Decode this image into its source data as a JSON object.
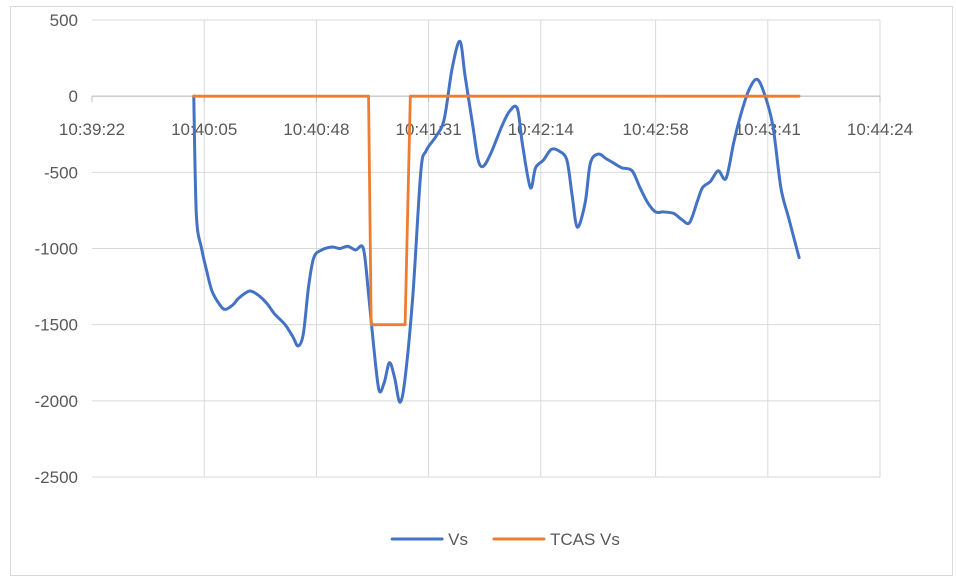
{
  "chart_data": {
    "type": "line",
    "title": "",
    "xlabel": "",
    "ylabel": "",
    "x_axis_type": "time",
    "xlim": [
      "10:39:22",
      "10:44:24"
    ],
    "x_ticks": [
      "10:39:22",
      "10:40:05",
      "10:40:48",
      "10:41:31",
      "10:42:14",
      "10:42:58",
      "10:43:41",
      "10:44:24"
    ],
    "ylim": [
      -2500,
      500
    ],
    "y_ticks": [
      500,
      0,
      -500,
      -1000,
      -1500,
      -2000,
      -2500
    ],
    "y_tick_labels": [
      "500",
      "0",
      "-500",
      "-1000",
      "-1500",
      "-2000",
      "-2500"
    ],
    "grid": "vertical and horizontal major gridlines",
    "legend_position": "bottom",
    "series": [
      {
        "name": "Vs",
        "color": "#4472c4",
        "points": [
          [
            "10:40:01",
            0
          ],
          [
            "10:40:02",
            -780
          ],
          [
            "10:40:04",
            -1000
          ],
          [
            "10:40:06",
            -1150
          ],
          [
            "10:40:08",
            -1280
          ],
          [
            "10:40:11",
            -1370
          ],
          [
            "10:40:13",
            -1400
          ],
          [
            "10:40:16",
            -1370
          ],
          [
            "10:40:18",
            -1330
          ],
          [
            "10:40:21",
            -1290
          ],
          [
            "10:40:23",
            -1280
          ],
          [
            "10:40:26",
            -1310
          ],
          [
            "10:40:29",
            -1360
          ],
          [
            "10:40:32",
            -1430
          ],
          [
            "10:40:36",
            -1500
          ],
          [
            "10:40:39",
            -1580
          ],
          [
            "10:40:41",
            -1640
          ],
          [
            "10:40:43",
            -1560
          ],
          [
            "10:40:45",
            -1250
          ],
          [
            "10:40:47",
            -1060
          ],
          [
            "10:40:50",
            -1010
          ],
          [
            "10:40:54",
            -990
          ],
          [
            "10:40:57",
            -1000
          ],
          [
            "10:41:00",
            -985
          ],
          [
            "10:41:03",
            -1010
          ],
          [
            "10:41:06",
            -1000
          ],
          [
            "10:41:08",
            -1300
          ],
          [
            "10:41:10",
            -1650
          ],
          [
            "10:41:12",
            -1930
          ],
          [
            "10:41:14",
            -1880
          ],
          [
            "10:41:16",
            -1750
          ],
          [
            "10:41:18",
            -1850
          ],
          [
            "10:41:20",
            -2010
          ],
          [
            "10:41:22",
            -1850
          ],
          [
            "10:41:25",
            -1300
          ],
          [
            "10:41:28",
            -500
          ],
          [
            "10:41:30",
            -360
          ],
          [
            "10:41:34",
            -260
          ],
          [
            "10:41:37",
            -150
          ],
          [
            "10:41:40",
            180
          ],
          [
            "10:41:43",
            360
          ],
          [
            "10:41:45",
            130
          ],
          [
            "10:41:48",
            -200
          ],
          [
            "10:41:50",
            -420
          ],
          [
            "10:41:52",
            -460
          ],
          [
            "10:41:55",
            -370
          ],
          [
            "10:41:59",
            -200
          ],
          [
            "10:42:02",
            -100
          ],
          [
            "10:42:05",
            -80
          ],
          [
            "10:42:07",
            -320
          ],
          [
            "10:42:10",
            -600
          ],
          [
            "10:42:12",
            -470
          ],
          [
            "10:42:15",
            -420
          ],
          [
            "10:42:18",
            -350
          ],
          [
            "10:42:21",
            -360
          ],
          [
            "10:42:24",
            -420
          ],
          [
            "10:42:26",
            -650
          ],
          [
            "10:42:28",
            -860
          ],
          [
            "10:42:31",
            -700
          ],
          [
            "10:42:33",
            -440
          ],
          [
            "10:42:36",
            -380
          ],
          [
            "10:42:39",
            -410
          ],
          [
            "10:42:42",
            -440
          ],
          [
            "10:42:45",
            -470
          ],
          [
            "10:42:49",
            -490
          ],
          [
            "10:42:52",
            -600
          ],
          [
            "10:42:55",
            -700
          ],
          [
            "10:42:58",
            -760
          ],
          [
            "10:43:01",
            -760
          ],
          [
            "10:43:05",
            -770
          ],
          [
            "10:43:08",
            -810
          ],
          [
            "10:43:11",
            -830
          ],
          [
            "10:43:14",
            -690
          ],
          [
            "10:43:16",
            -600
          ],
          [
            "10:43:19",
            -560
          ],
          [
            "10:43:22",
            -490
          ],
          [
            "10:43:25",
            -540
          ],
          [
            "10:43:28",
            -300
          ],
          [
            "10:43:31",
            -100
          ],
          [
            "10:43:34",
            50
          ],
          [
            "10:43:37",
            110
          ],
          [
            "10:43:40",
            0
          ],
          [
            "10:43:43",
            -200
          ],
          [
            "10:43:46",
            -600
          ],
          [
            "10:43:49",
            -800
          ],
          [
            "10:43:53",
            -1060
          ]
        ]
      },
      {
        "name": "TCAS Vs",
        "color": "#ed7d31",
        "points": [
          [
            "10:40:01",
            0
          ],
          [
            "10:41:08",
            0
          ],
          [
            "10:41:09",
            -1500
          ],
          [
            "10:41:22",
            -1500
          ],
          [
            "10:41:24",
            0
          ],
          [
            "10:43:53",
            0
          ]
        ]
      }
    ]
  }
}
